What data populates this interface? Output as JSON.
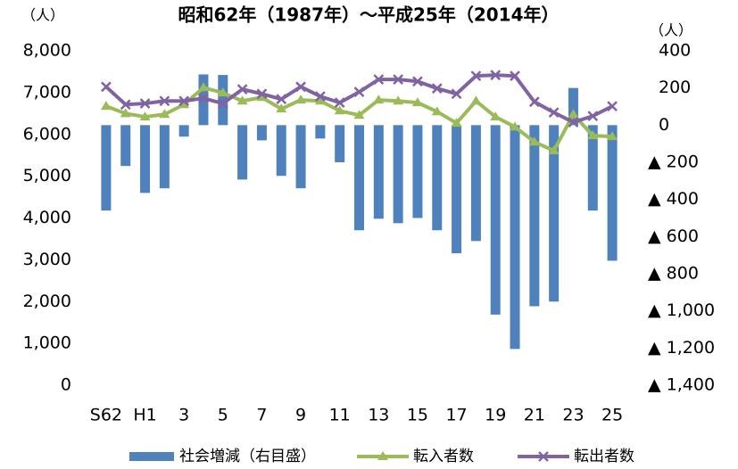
{
  "chart_data": {
    "type": "combo",
    "title": "昭和62年（1987年）～平成25年（2014年）",
    "y_unit": "（人）",
    "y2_unit": "（人）",
    "categories": [
      "S62",
      null,
      "H1",
      null,
      "3",
      null,
      "5",
      null,
      "7",
      null,
      "9",
      null,
      "11",
      null,
      "13",
      null,
      "15",
      null,
      "17",
      null,
      "19",
      null,
      "21",
      null,
      "23",
      null,
      "25"
    ],
    "ylim": [
      0,
      8000
    ],
    "yticks": [
      0,
      {
        "value": 1000,
        "label": "1,000"
      },
      {
        "value": 2000,
        "label": "2,000"
      },
      {
        "value": 3000,
        "label": "3,000"
      },
      {
        "value": 4000,
        "label": "4,000"
      },
      {
        "value": 5000,
        "label": "5,000"
      },
      {
        "value": 6000,
        "label": "6,000"
      },
      {
        "value": 7000,
        "label": "7,000"
      },
      {
        "value": 8000,
        "label": "8,000"
      }
    ],
    "y2lim": [
      -1400,
      400
    ],
    "y2ticks": [
      400,
      200,
      0,
      {
        "value": -200,
        "label": "▲ 200"
      },
      {
        "value": -400,
        "label": "▲ 400"
      },
      {
        "value": -600,
        "label": "▲ 600"
      },
      {
        "value": -800,
        "label": "▲ 800"
      },
      {
        "value": -1000,
        "label": "▲ 1,000"
      },
      {
        "value": -1200,
        "label": "▲ 1,200"
      },
      {
        "value": -1400,
        "label": "▲ 1,400"
      }
    ],
    "grid": false,
    "legend": "bottom",
    "series": [
      {
        "name": "社会増減（右目盛）",
        "type": "bar",
        "axis": "y2",
        "color": "#4f81bd",
        "values": [
          -460,
          -220,
          -365,
          -340,
          -62,
          273,
          270,
          -293,
          -82,
          -273,
          -340,
          -72,
          -200,
          -566,
          -504,
          -528,
          -500,
          -566,
          -690,
          -624,
          -1020,
          -1205,
          -975,
          -950,
          200,
          -460,
          -730
        ]
      },
      {
        "name": "転入者数",
        "type": "line",
        "marker": "triangle",
        "color": "#9bbb59",
        "values": [
          6675,
          6500,
          6420,
          6480,
          6715,
          7120,
          6995,
          6800,
          6885,
          6610,
          6825,
          6800,
          6565,
          6460,
          6825,
          6800,
          6760,
          6545,
          6270,
          6800,
          6420,
          6180,
          5820,
          5610,
          6480,
          5970,
          5950
        ]
      },
      {
        "name": "転出者数",
        "type": "line",
        "marker": "x",
        "color": "#8064a2",
        "values": [
          7140,
          6715,
          6740,
          6800,
          6800,
          6865,
          6740,
          7080,
          6970,
          6845,
          7140,
          6910,
          6760,
          7015,
          7315,
          7315,
          7270,
          7100,
          6970,
          7400,
          7420,
          7400,
          6780,
          6525,
          6290,
          6440,
          6675
        ]
      }
    ]
  }
}
